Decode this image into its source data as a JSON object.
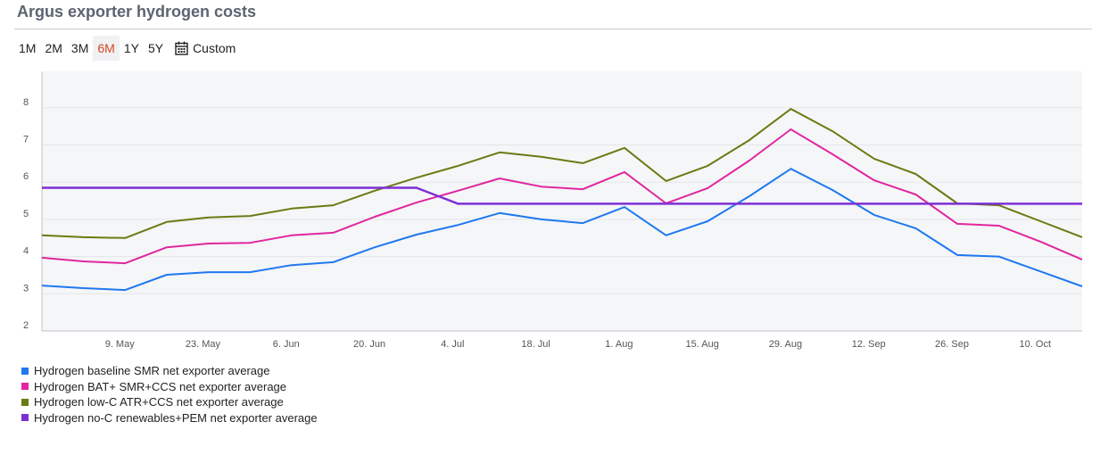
{
  "header": {
    "title": "Argus exporter hydrogen costs"
  },
  "ranges": {
    "items": [
      "1M",
      "2M",
      "3M",
      "6M",
      "1Y",
      "5Y"
    ],
    "active": "6M",
    "custom_label": "Custom"
  },
  "chart_data": {
    "type": "line",
    "title": "Argus exporter hydrogen costs",
    "xlabel": "",
    "ylabel": "",
    "ylim": [
      2,
      8.8
    ],
    "yticks": [
      2,
      3,
      4,
      5,
      6,
      7,
      8
    ],
    "xtick_labels": [
      "9. May",
      "23. May",
      "6. Jun",
      "20. Jun",
      "4. Jul",
      "18. Jul",
      "1. Aug",
      "15. Aug",
      "29. Aug",
      "12. Sep",
      "26. Sep",
      "10. Oct"
    ],
    "grid": true,
    "legend": "bottom-left",
    "series": [
      {
        "name": "Hydrogen baseline SMR net exporter average",
        "color": "#1f78f0",
        "values": [
          3.22,
          3.15,
          3.1,
          3.51,
          3.58,
          3.58,
          3.77,
          3.85,
          4.25,
          4.59,
          4.85,
          5.17,
          5.0,
          4.9,
          5.33,
          4.57,
          4.95,
          5.62,
          6.36,
          5.79,
          5.12,
          4.76,
          4.04,
          4.0,
          3.6,
          3.2
        ]
      },
      {
        "name": "Hydrogen BAT+ SMR+CCS net exporter average",
        "color": "#e0269f",
        "values": [
          3.97,
          3.87,
          3.82,
          4.25,
          4.35,
          4.37,
          4.57,
          4.64,
          5.07,
          5.45,
          5.77,
          6.1,
          5.88,
          5.81,
          6.27,
          5.43,
          5.84,
          6.58,
          7.42,
          6.75,
          6.05,
          5.67,
          4.88,
          4.83,
          4.4,
          3.92
        ]
      },
      {
        "name": "Hydrogen low-C ATR+CCS net exporter average",
        "color": "#6b7a12",
        "values": [
          4.57,
          4.52,
          4.5,
          4.93,
          5.05,
          5.09,
          5.29,
          5.38,
          5.77,
          6.12,
          6.44,
          6.8,
          6.68,
          6.51,
          6.92,
          6.03,
          6.44,
          7.13,
          7.97,
          7.37,
          6.63,
          6.22,
          5.43,
          5.38,
          4.95,
          4.52
        ]
      },
      {
        "name": "Hydrogen no-C renewables+PEM net exporter average",
        "color": "#7d2fd6",
        "values": [
          5.85,
          5.85,
          5.85,
          5.85,
          5.85,
          5.85,
          5.85,
          5.85,
          5.85,
          5.85,
          5.42,
          5.42,
          5.42,
          5.42,
          5.42,
          5.42,
          5.42,
          5.42,
          5.42,
          5.42,
          5.42,
          5.42,
          5.42,
          5.42,
          5.42,
          5.42
        ]
      }
    ]
  }
}
